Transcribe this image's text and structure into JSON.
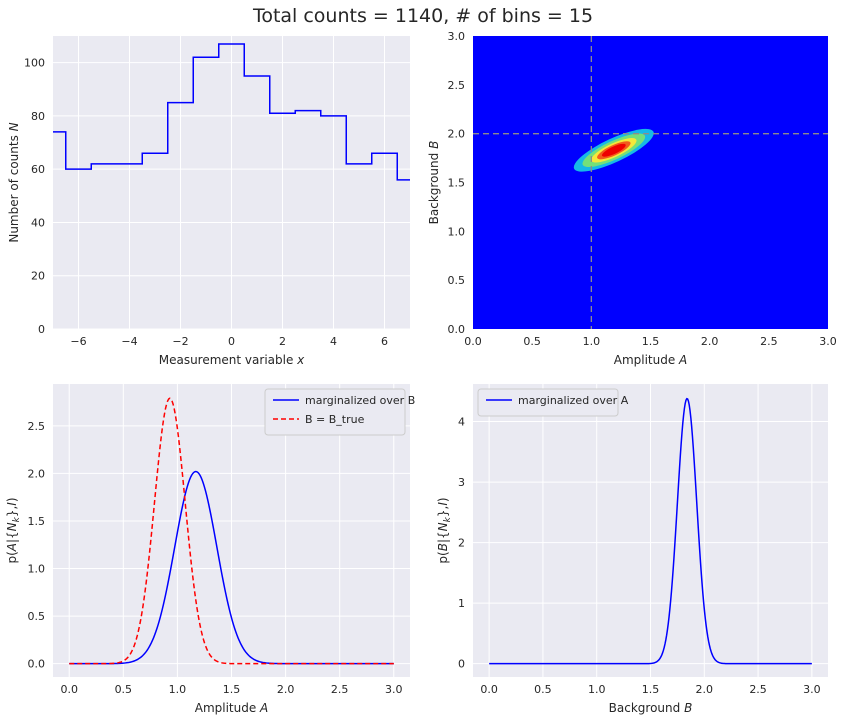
{
  "figure": {
    "title": "Total counts = 1140,  # of bins = 15"
  },
  "colors": {
    "axes_bg": "#EAEAF2",
    "grid": "#FFFFFF",
    "text": "#262626",
    "hist": "#0000FF",
    "contour_bg": "#0000FF",
    "marg_b": "#0000FF",
    "btrue": "#FF0000",
    "marg_a": "#0000FF"
  },
  "chart_data": [
    {
      "id": "hist",
      "type": "line",
      "style": "step",
      "xlabel": "Measurement variable",
      "xlabel_var": "x",
      "ylabel": "Number of counts",
      "ylabel_var": "N",
      "xlim": [
        -7,
        7
      ],
      "ylim": [
        0,
        110
      ],
      "xticks": [
        -6,
        -4,
        -2,
        0,
        2,
        4,
        6
      ],
      "yticks": [
        0,
        20,
        40,
        60,
        80,
        100
      ],
      "grid": true,
      "bin_centers": [
        -7,
        -6,
        -5,
        -4,
        -3,
        -2,
        -1,
        0,
        1,
        2,
        3,
        4,
        5,
        6,
        7
      ],
      "counts": [
        74,
        60,
        62,
        62,
        66,
        85,
        102,
        107,
        95,
        81,
        82,
        80,
        62,
        66,
        56
      ]
    },
    {
      "id": "contour",
      "type": "heatmap",
      "xlabel": "Amplitude",
      "xlabel_var": "A",
      "ylabel": "Background",
      "ylabel_var": "B",
      "xlim": [
        0,
        3
      ],
      "ylim": [
        0,
        3
      ],
      "xticks": [
        0.0,
        0.5,
        1.0,
        1.5,
        2.0,
        2.5,
        3.0
      ],
      "yticks": [
        0.0,
        0.5,
        1.0,
        1.5,
        2.0,
        2.5,
        3.0
      ],
      "grid": true,
      "true_values": {
        "A": 1.0,
        "B": 2.0
      },
      "levels": [
        {
          "color": "#17B9E6",
          "center": [
            1.19,
            1.83
          ],
          "rx": 0.37,
          "ry": 0.055,
          "angle_deg": -25
        },
        {
          "color": "#74E07A",
          "center": [
            1.19,
            1.83
          ],
          "rx": 0.29,
          "ry": 0.043,
          "angle_deg": -25
        },
        {
          "color": "#F5E83A",
          "center": [
            1.19,
            1.83
          ],
          "rx": 0.21,
          "ry": 0.032,
          "angle_deg": -25
        },
        {
          "color": "#F25A1C",
          "center": [
            1.19,
            1.83
          ],
          "rx": 0.155,
          "ry": 0.024,
          "angle_deg": -25
        },
        {
          "color": "#EE0000",
          "center": [
            1.19,
            1.83
          ],
          "rx": 0.11,
          "ry": 0.017,
          "angle_deg": -25
        }
      ]
    },
    {
      "id": "pA",
      "type": "line",
      "xlabel": "Amplitude",
      "xlabel_var": "A",
      "ylabel_text": "p(A|{N_k},I)",
      "xlim": [
        -0.15,
        3.15
      ],
      "ylim": [
        -0.14,
        2.94
      ],
      "xticks": [
        0.0,
        0.5,
        1.0,
        1.5,
        2.0,
        2.5,
        3.0
      ],
      "yticks": [
        0.0,
        0.5,
        1.0,
        1.5,
        2.0,
        2.5
      ],
      "grid": true,
      "legend_position": "top-right",
      "series": [
        {
          "name": "marginalized over B",
          "style": "solid",
          "peak_x": 1.17,
          "peak_y": 2.02,
          "sigma": 0.195,
          "x_range": [
            0,
            3
          ]
        },
        {
          "name": "B = B_true",
          "style": "dashed",
          "peak_x": 0.93,
          "peak_y": 2.79,
          "sigma": 0.142,
          "x_range": [
            0,
            3
          ]
        }
      ]
    },
    {
      "id": "pB",
      "type": "line",
      "xlabel": "Background",
      "xlabel_var": "B",
      "ylabel_text": "p(B|{N_k},I)",
      "xlim": [
        -0.15,
        3.15
      ],
      "ylim": [
        -0.22,
        4.62
      ],
      "xticks": [
        0.0,
        0.5,
        1.0,
        1.5,
        2.0,
        2.5,
        3.0
      ],
      "yticks": [
        0,
        1,
        2,
        3,
        4
      ],
      "grid": true,
      "legend_position": "top-left",
      "series": [
        {
          "name": "marginalized over A",
          "style": "solid",
          "peak_x": 1.84,
          "peak_y": 4.38,
          "sigma": 0.09,
          "x_range": [
            0,
            3
          ]
        }
      ]
    }
  ]
}
